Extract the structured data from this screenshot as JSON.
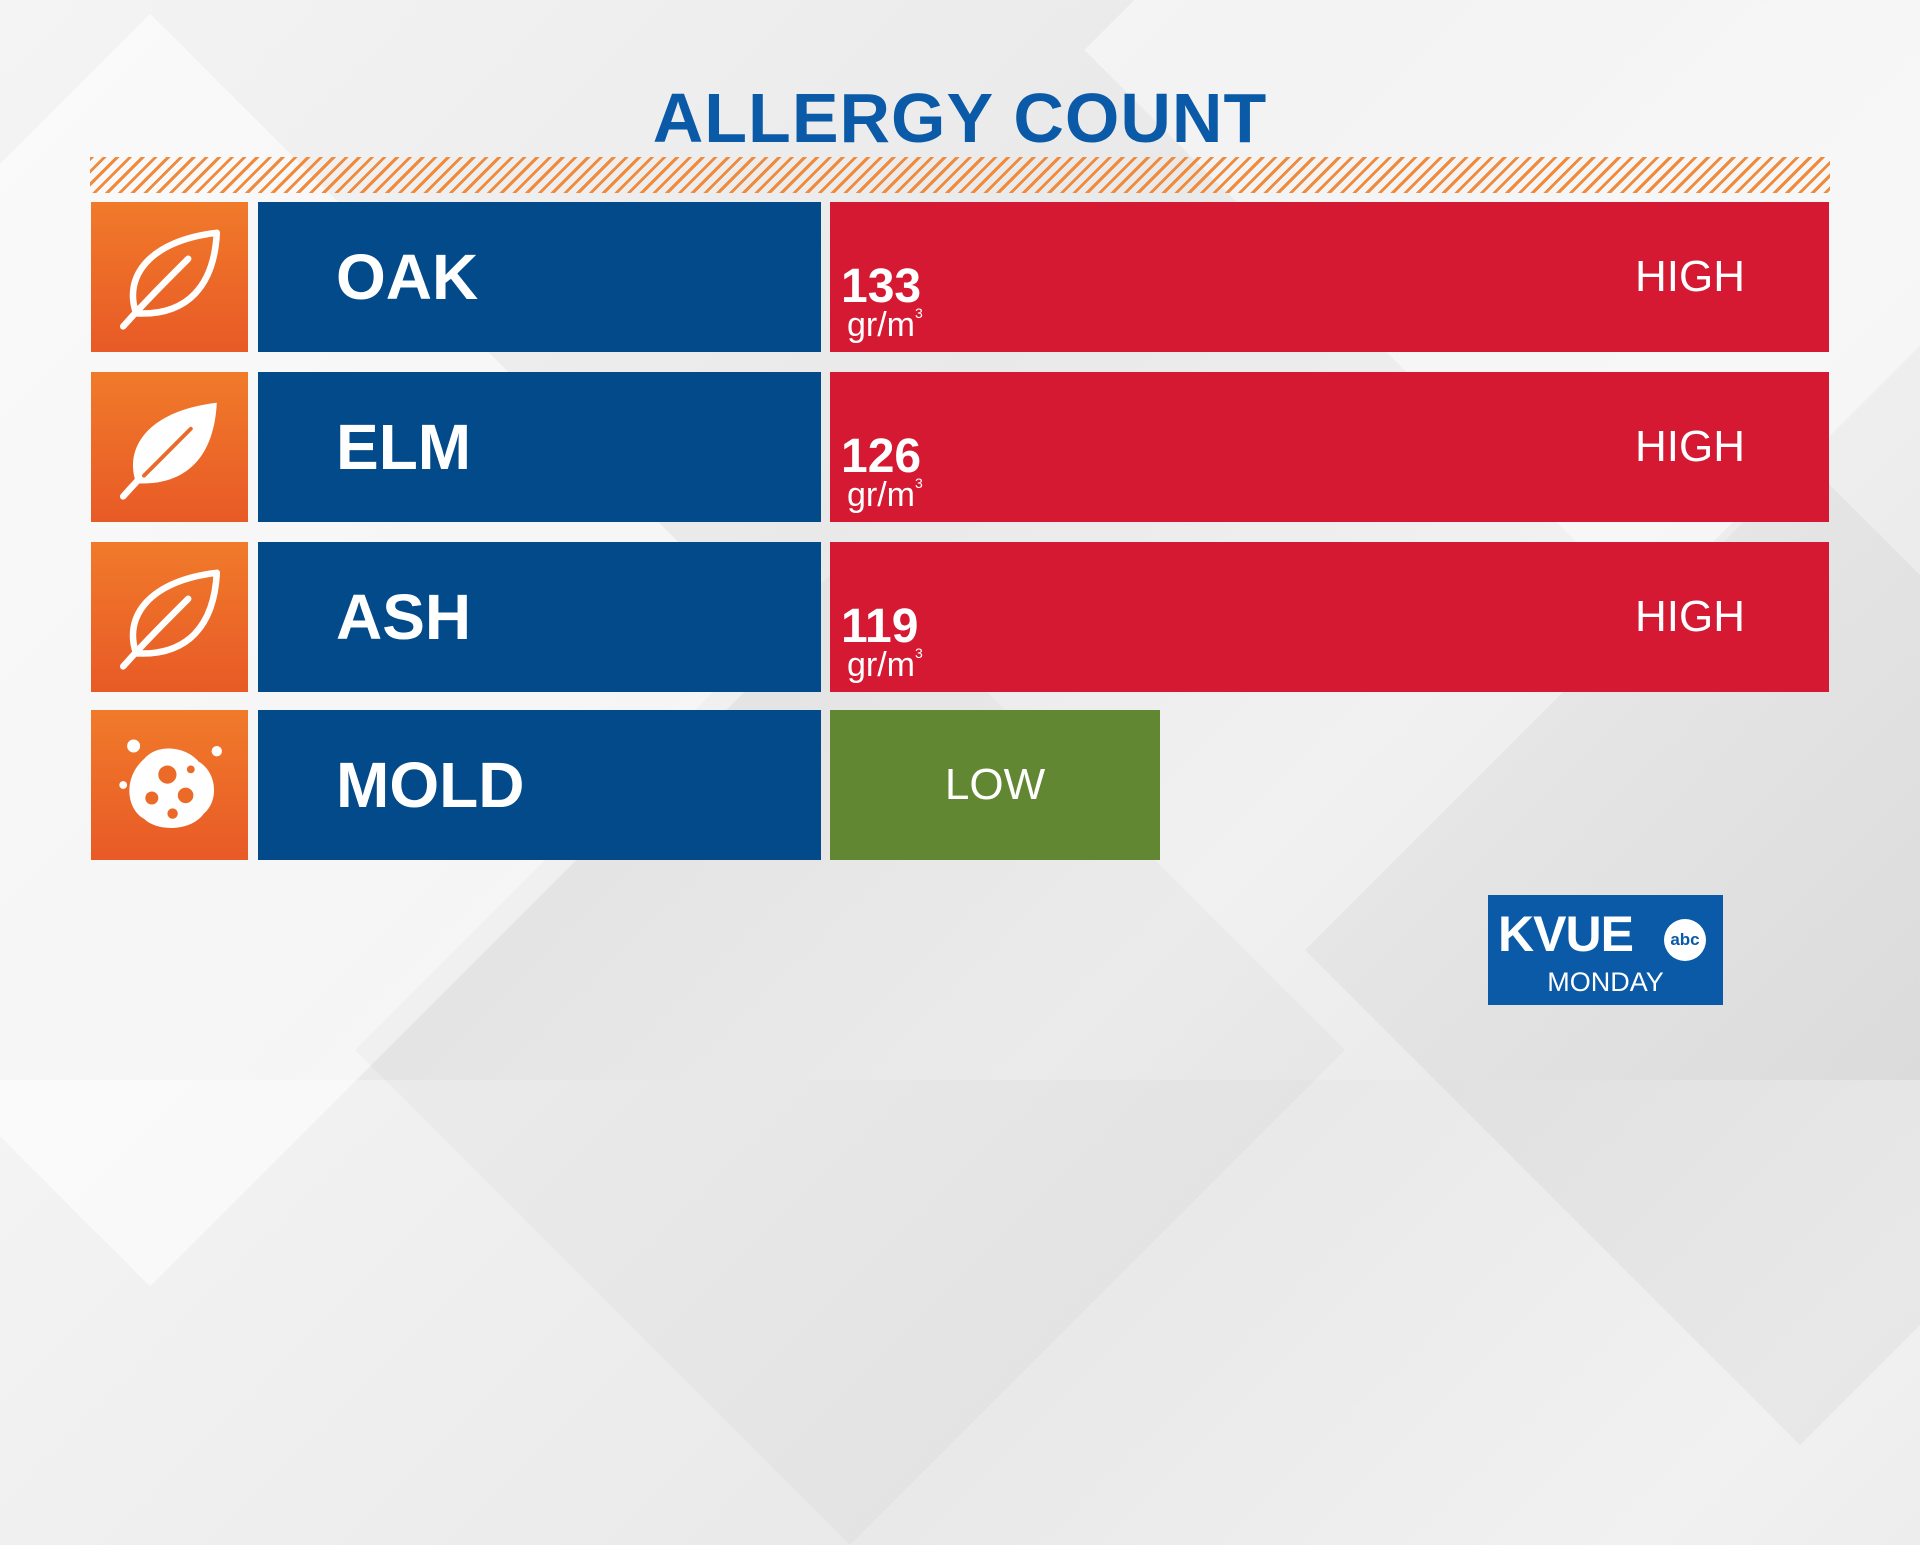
{
  "title": "ALLERGY COUNT",
  "colors": {
    "title": "#0a5aa8",
    "icon_bg": "#f07a2a",
    "name_bg": "#034a8a",
    "high": "#d51932",
    "low": "#618732",
    "hatch": "#f08a3c"
  },
  "allergens": [
    {
      "name": "OAK",
      "icon": "leaf-outline-icon",
      "count": "133",
      "unit": "gr/m",
      "unit_exp": "3",
      "level": "HIGH"
    },
    {
      "name": "ELM",
      "icon": "leaf-filled-icon",
      "count": "126",
      "unit": "gr/m",
      "unit_exp": "3",
      "level": "HIGH"
    },
    {
      "name": "ASH",
      "icon": "leaf-outline-icon",
      "count": "119",
      "unit": "gr/m",
      "unit_exp": "3",
      "level": "HIGH"
    },
    {
      "name": "MOLD",
      "icon": "mold-spore-icon",
      "level": "LOW"
    }
  ],
  "logo": {
    "station": "KVUE",
    "network": "abc",
    "day": "MONDAY"
  }
}
